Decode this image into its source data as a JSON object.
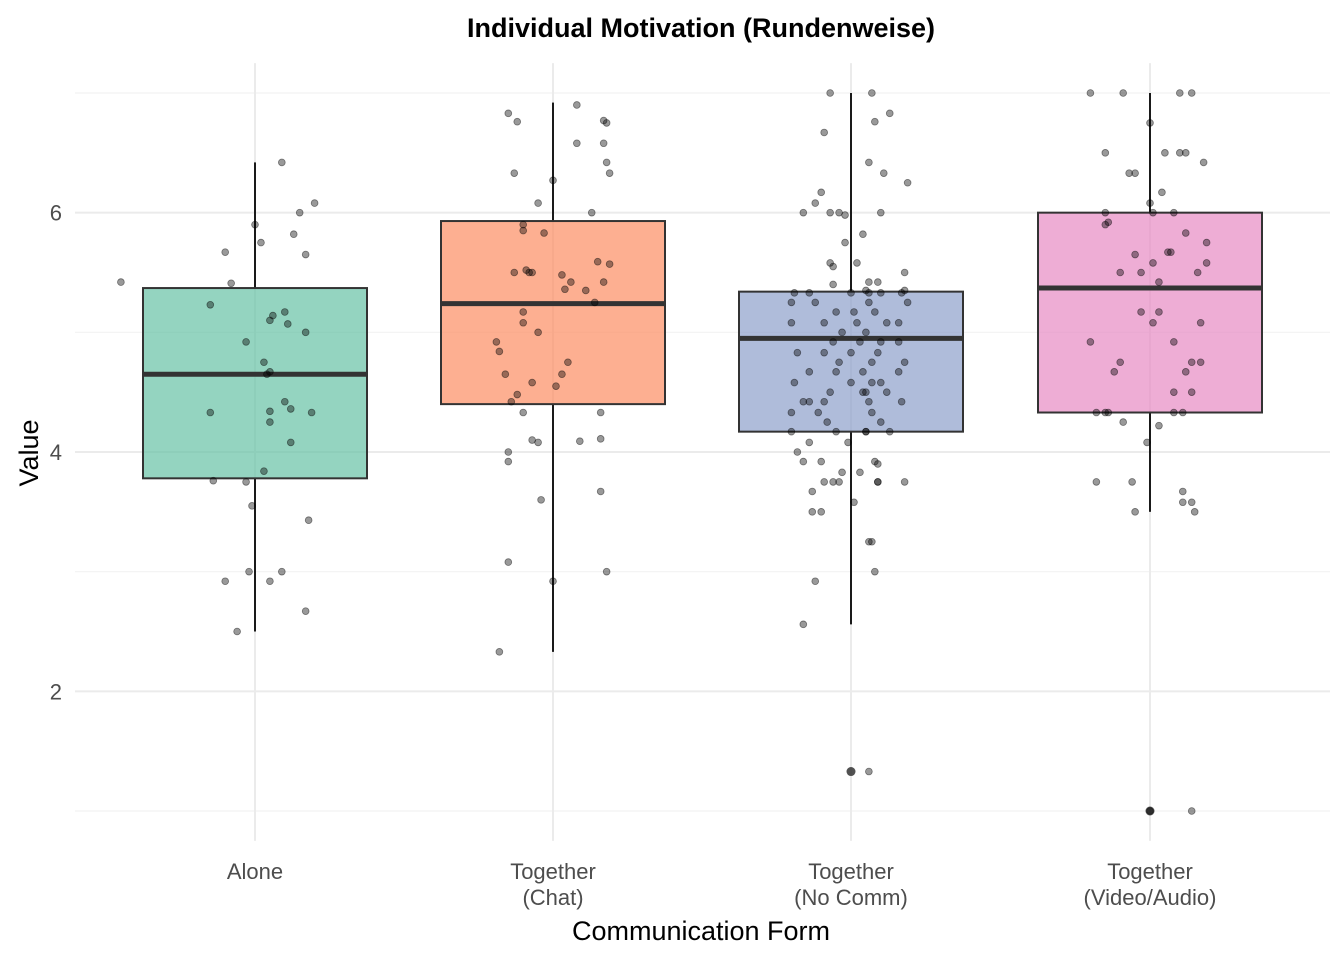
{
  "chart_data": {
    "type": "box",
    "title": "Individual Motivation (Rundenweise)",
    "xlabel": "Communication Form",
    "ylabel": "Value",
    "ylim": [
      0.75,
      7.25
    ],
    "yticks": [
      2,
      4,
      6
    ],
    "grid": true,
    "legend": "none",
    "categories": [
      {
        "line1": "Alone",
        "line2": ""
      },
      {
        "line1": "Together",
        "line2": "(Chat)"
      },
      {
        "line1": "Together",
        "line2": "(No Comm)"
      },
      {
        "line1": "Together",
        "line2": "(Video/Audio)"
      }
    ],
    "boxes": [
      {
        "min": 2.5,
        "q1": 3.78,
        "median": 4.65,
        "q3": 5.37,
        "max": 6.42,
        "outliers": [],
        "color": "#66c2a5"
      },
      {
        "min": 2.33,
        "q1": 4.4,
        "median": 5.24,
        "q3": 5.93,
        "max": 6.92,
        "outliers": [],
        "color": "#fc8d62"
      },
      {
        "min": 2.56,
        "q1": 4.17,
        "median": 4.95,
        "q3": 5.34,
        "max": 7.0,
        "outliers": [
          1.33
        ],
        "color": "#8da0cb"
      },
      {
        "min": 3.5,
        "q1": 4.33,
        "median": 5.37,
        "q3": 6.0,
        "max": 7.0,
        "outliers": [
          1.0
        ],
        "color": "#e78ac3"
      }
    ],
    "points": [
      [
        [
          -0.45,
          5.42
        ],
        [
          -0.15,
          5.23
        ],
        [
          -0.1,
          5.67
        ],
        [
          -0.08,
          5.41
        ],
        [
          0.0,
          5.9
        ],
        [
          0.02,
          5.75
        ],
        [
          0.09,
          6.42
        ],
        [
          0.13,
          5.82
        ],
        [
          0.15,
          6.0
        ],
        [
          0.17,
          5.65
        ],
        [
          0.2,
          6.08
        ],
        [
          0.05,
          5.1
        ],
        [
          0.06,
          5.14
        ],
        [
          0.1,
          5.17
        ],
        [
          0.11,
          5.07
        ],
        [
          0.17,
          5.0
        ],
        [
          -0.03,
          4.92
        ],
        [
          0.03,
          4.75
        ],
        [
          0.04,
          4.65
        ],
        [
          0.05,
          4.67
        ],
        [
          0.1,
          4.42
        ],
        [
          0.12,
          4.36
        ],
        [
          0.19,
          4.33
        ],
        [
          -0.15,
          4.33
        ],
        [
          0.05,
          4.34
        ],
        [
          0.05,
          4.25
        ],
        [
          0.12,
          4.08
        ],
        [
          0.03,
          3.84
        ],
        [
          -0.14,
          3.76
        ],
        [
          -0.03,
          3.75
        ],
        [
          0.18,
          3.43
        ],
        [
          -0.01,
          3.55
        ],
        [
          -0.02,
          3.0
        ],
        [
          0.09,
          3.0
        ],
        [
          0.05,
          2.92
        ],
        [
          -0.1,
          2.92
        ],
        [
          0.17,
          2.67
        ],
        [
          -0.06,
          2.5
        ]
      ],
      [
        [
          -0.15,
          6.83
        ],
        [
          -0.12,
          6.76
        ],
        [
          0.08,
          6.9
        ],
        [
          0.17,
          6.77
        ],
        [
          0.18,
          6.75
        ],
        [
          -0.13,
          6.33
        ],
        [
          0.17,
          6.58
        ],
        [
          0.08,
          6.58
        ],
        [
          0.18,
          6.42
        ],
        [
          0.19,
          6.33
        ],
        [
          0.0,
          6.27
        ],
        [
          0.13,
          6.0
        ],
        [
          -0.05,
          6.08
        ],
        [
          -0.1,
          5.9
        ],
        [
          -0.1,
          5.85
        ],
        [
          -0.03,
          5.83
        ],
        [
          0.15,
          5.59
        ],
        [
          0.19,
          5.57
        ],
        [
          -0.13,
          5.5
        ],
        [
          -0.09,
          5.52
        ],
        [
          -0.08,
          5.5
        ],
        [
          -0.07,
          5.5
        ],
        [
          0.03,
          5.48
        ],
        [
          0.06,
          5.42
        ],
        [
          0.17,
          5.42
        ],
        [
          0.04,
          5.36
        ],
        [
          0.11,
          5.35
        ],
        [
          0.14,
          5.25
        ],
        [
          -0.1,
          5.17
        ],
        [
          -0.1,
          5.08
        ],
        [
          -0.05,
          5.0
        ],
        [
          -0.19,
          4.92
        ],
        [
          -0.18,
          4.84
        ],
        [
          -0.16,
          4.65
        ],
        [
          -0.07,
          4.58
        ],
        [
          0.05,
          4.75
        ],
        [
          0.01,
          4.55
        ],
        [
          0.03,
          4.65
        ],
        [
          -0.12,
          4.48
        ],
        [
          -0.14,
          4.42
        ],
        [
          -0.07,
          4.1
        ],
        [
          -0.1,
          4.33
        ],
        [
          0.16,
          4.33
        ],
        [
          0.16,
          4.11
        ],
        [
          0.09,
          4.09
        ],
        [
          -0.05,
          4.08
        ],
        [
          -0.15,
          4.0
        ],
        [
          -0.15,
          3.92
        ],
        [
          -0.04,
          3.6
        ],
        [
          0.16,
          3.67
        ],
        [
          -0.15,
          3.08
        ],
        [
          0.18,
          3.0
        ],
        [
          0.0,
          2.92
        ],
        [
          -0.18,
          2.33
        ]
      ],
      [
        [
          -0.07,
          7.0
        ],
        [
          0.07,
          7.0
        ],
        [
          0.13,
          6.83
        ],
        [
          0.08,
          6.76
        ],
        [
          -0.09,
          6.67
        ],
        [
          0.06,
          6.42
        ],
        [
          0.11,
          6.33
        ],
        [
          0.19,
          6.25
        ],
        [
          -0.1,
          6.17
        ],
        [
          -0.12,
          6.08
        ],
        [
          -0.16,
          6.0
        ],
        [
          -0.07,
          6.0
        ],
        [
          -0.04,
          6.0
        ],
        [
          -0.02,
          5.98
        ],
        [
          0.1,
          6.0
        ],
        [
          0.04,
          5.82
        ],
        [
          -0.02,
          5.75
        ],
        [
          0.02,
          5.58
        ],
        [
          -0.07,
          5.58
        ],
        [
          -0.06,
          5.55
        ],
        [
          0.18,
          5.5
        ],
        [
          0.06,
          5.42
        ],
        [
          0.09,
          5.42
        ],
        [
          -0.06,
          5.4
        ],
        [
          0.05,
          5.35
        ],
        [
          0.06,
          5.33
        ],
        [
          0.1,
          5.33
        ],
        [
          0.17,
          5.33
        ],
        [
          0.18,
          5.35
        ],
        [
          -0.19,
          5.33
        ],
        [
          -0.14,
          5.33
        ],
        [
          0.0,
          5.33
        ],
        [
          -0.2,
          5.25
        ],
        [
          -0.12,
          5.25
        ],
        [
          -0.05,
          5.17
        ],
        [
          0.01,
          5.17
        ],
        [
          0.06,
          5.25
        ],
        [
          0.08,
          5.17
        ],
        [
          0.12,
          5.08
        ],
        [
          0.19,
          5.25
        ],
        [
          0.16,
          5.08
        ],
        [
          -0.2,
          5.08
        ],
        [
          -0.09,
          5.08
        ],
        [
          -0.03,
          5.0
        ],
        [
          0.05,
          5.0
        ],
        [
          0.02,
          5.08
        ],
        [
          -0.06,
          4.92
        ],
        [
          0.03,
          4.92
        ],
        [
          0.1,
          4.92
        ],
        [
          0.16,
          4.92
        ],
        [
          -0.18,
          4.83
        ],
        [
          -0.09,
          4.83
        ],
        [
          0.0,
          4.83
        ],
        [
          0.09,
          4.83
        ],
        [
          -0.04,
          4.75
        ],
        [
          0.07,
          4.75
        ],
        [
          0.18,
          4.75
        ],
        [
          -0.14,
          4.67
        ],
        [
          -0.05,
          4.67
        ],
        [
          0.04,
          4.67
        ],
        [
          0.16,
          4.67
        ],
        [
          -0.19,
          4.58
        ],
        [
          0.0,
          4.58
        ],
        [
          0.07,
          4.58
        ],
        [
          0.1,
          4.58
        ],
        [
          0.12,
          4.5
        ],
        [
          0.04,
          4.5
        ],
        [
          0.05,
          4.5
        ],
        [
          -0.07,
          4.5
        ],
        [
          -0.09,
          4.42
        ],
        [
          -0.16,
          4.42
        ],
        [
          -0.14,
          4.42
        ],
        [
          0.06,
          4.42
        ],
        [
          0.17,
          4.42
        ],
        [
          -0.2,
          4.33
        ],
        [
          -0.11,
          4.33
        ],
        [
          0.07,
          4.33
        ],
        [
          0.1,
          4.25
        ],
        [
          -0.08,
          4.25
        ],
        [
          0.05,
          4.17
        ],
        [
          0.13,
          4.17
        ],
        [
          -0.2,
          4.17
        ],
        [
          -0.05,
          4.17
        ],
        [
          0.05,
          4.17
        ],
        [
          -0.14,
          4.08
        ],
        [
          -0.01,
          4.08
        ],
        [
          -0.18,
          4.0
        ],
        [
          -0.1,
          3.92
        ],
        [
          -0.16,
          3.92
        ],
        [
          0.08,
          3.92
        ],
        [
          0.09,
          3.9
        ],
        [
          -0.03,
          3.83
        ],
        [
          0.03,
          3.83
        ],
        [
          -0.09,
          3.75
        ],
        [
          -0.06,
          3.75
        ],
        [
          0.09,
          3.75
        ],
        [
          0.09,
          3.75
        ],
        [
          0.18,
          3.75
        ],
        [
          -0.04,
          3.75
        ],
        [
          -0.13,
          3.67
        ],
        [
          0.01,
          3.58
        ],
        [
          -0.13,
          3.5
        ],
        [
          -0.1,
          3.5
        ],
        [
          0.06,
          3.25
        ],
        [
          0.07,
          3.25
        ],
        [
          0.08,
          3.0
        ],
        [
          -0.12,
          2.92
        ],
        [
          -0.16,
          2.56
        ],
        [
          0.06,
          1.33
        ]
      ],
      [
        [
          -0.2,
          7.0
        ],
        [
          -0.09,
          7.0
        ],
        [
          0.1,
          7.0
        ],
        [
          0.14,
          7.0
        ],
        [
          0.0,
          6.75
        ],
        [
          -0.15,
          6.5
        ],
        [
          0.05,
          6.5
        ],
        [
          0.1,
          6.5
        ],
        [
          0.12,
          6.5
        ],
        [
          0.18,
          6.42
        ],
        [
          -0.07,
          6.33
        ],
        [
          -0.05,
          6.33
        ],
        [
          0.04,
          6.17
        ],
        [
          0.0,
          6.08
        ],
        [
          0.01,
          6.0
        ],
        [
          0.08,
          6.0
        ],
        [
          -0.15,
          6.0
        ],
        [
          -0.15,
          5.9
        ],
        [
          -0.14,
          5.92
        ],
        [
          0.12,
          5.83
        ],
        [
          0.19,
          5.75
        ],
        [
          0.06,
          5.67
        ],
        [
          0.07,
          5.67
        ],
        [
          -0.05,
          5.65
        ],
        [
          0.01,
          5.58
        ],
        [
          0.19,
          5.58
        ],
        [
          -0.03,
          5.5
        ],
        [
          -0.1,
          5.5
        ],
        [
          0.16,
          5.5
        ],
        [
          0.03,
          5.42
        ],
        [
          -0.03,
          5.17
        ],
        [
          0.03,
          5.17
        ],
        [
          0.01,
          5.08
        ],
        [
          0.17,
          5.08
        ],
        [
          -0.2,
          4.92
        ],
        [
          -0.1,
          4.75
        ],
        [
          0.08,
          4.92
        ],
        [
          -0.12,
          4.67
        ],
        [
          0.12,
          4.67
        ],
        [
          0.17,
          4.75
        ],
        [
          0.14,
          4.75
        ],
        [
          0.08,
          4.5
        ],
        [
          0.14,
          4.5
        ],
        [
          -0.14,
          4.33
        ],
        [
          -0.15,
          4.33
        ],
        [
          0.11,
          4.33
        ],
        [
          -0.18,
          4.33
        ],
        [
          -0.09,
          4.25
        ],
        [
          0.08,
          4.33
        ],
        [
          -0.01,
          4.08
        ],
        [
          0.03,
          4.22
        ],
        [
          -0.18,
          3.75
        ],
        [
          -0.06,
          3.75
        ],
        [
          0.11,
          3.67
        ],
        [
          0.11,
          3.58
        ],
        [
          0.14,
          3.58
        ],
        [
          0.15,
          3.5
        ],
        [
          -0.05,
          3.5
        ],
        [
          0.14,
          1.0
        ],
        [
          0.0,
          1.0
        ]
      ]
    ]
  }
}
